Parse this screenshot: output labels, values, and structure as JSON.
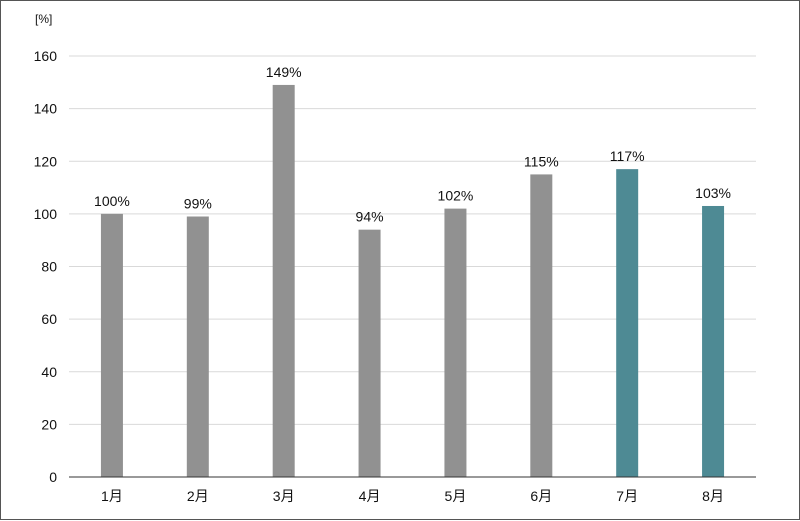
{
  "chart_data": {
    "type": "bar",
    "categories": [
      "1月",
      "2月",
      "3月",
      "4月",
      "5月",
      "6月",
      "7月",
      "8月"
    ],
    "values": [
      100,
      99,
      149,
      94,
      102,
      115,
      117,
      103
    ],
    "data_labels": [
      "100%",
      "99%",
      "149%",
      "94%",
      "102%",
      "115%",
      "117%",
      "103%"
    ],
    "y_unit": "[%]",
    "ylim": [
      0,
      160
    ],
    "y_ticks": [
      0,
      20,
      40,
      60,
      80,
      100,
      120,
      140,
      160
    ],
    "grid": true,
    "legend": "none",
    "bar_colors": [
      "#919191",
      "#919191",
      "#919191",
      "#919191",
      "#919191",
      "#919191",
      "#4e8a94",
      "#4e8a94"
    ]
  },
  "colors": {
    "gridline": "#d9d9d9",
    "axis": "#333333",
    "frame": "#555555"
  }
}
